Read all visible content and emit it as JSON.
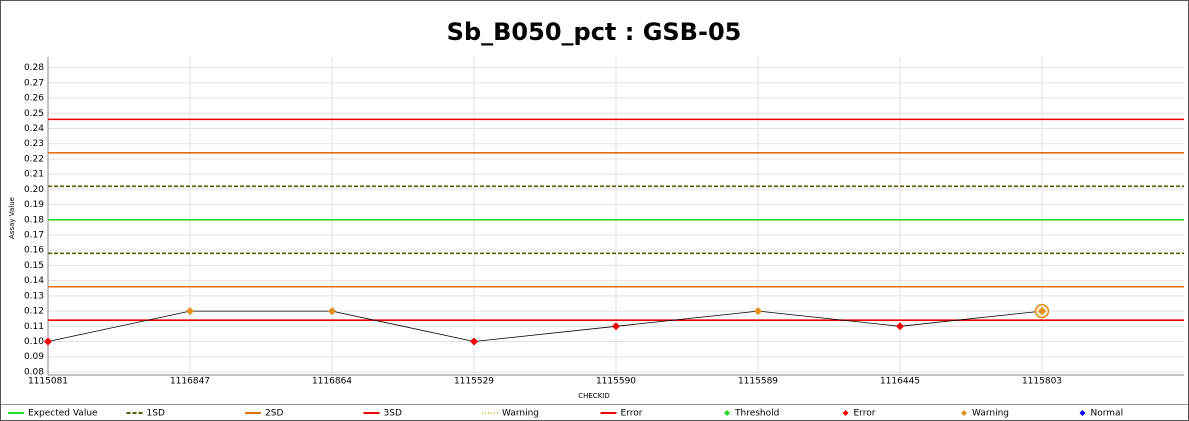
{
  "chart_data": {
    "type": "line",
    "title": "Sb_B050_pct : GSB-05",
    "x_label": "CHECKID",
    "y_label": "Assay Value",
    "categories": [
      "1115081",
      "1116847",
      "1116864",
      "1115529",
      "1115590",
      "1115589",
      "1116445",
      "1115803"
    ],
    "values": [
      0.1,
      0.12,
      0.12,
      0.1,
      0.11,
      0.12,
      0.11,
      0.12
    ],
    "point_colors": [
      "#ee0000",
      "#e09020",
      "#e09020",
      "#ee0000",
      "#ee0000",
      "#e09020",
      "#ee0000",
      "#e09020"
    ],
    "line_color": "#000000",
    "selected_index": 7,
    "ylim": [
      0.078,
      0.287
    ],
    "yticks": [
      0.08,
      0.09,
      {
        "value": 0.1,
        "label": "0.10"
      },
      0.11,
      0.12,
      0.13,
      0.14,
      0.15,
      0.16,
      0.17,
      0.18,
      0.19,
      {
        "value": 0.2,
        "label": "0.20"
      },
      0.21,
      0.22,
      0.23,
      0.24,
      0.25,
      0.26,
      0.27,
      0.28
    ],
    "grid": true,
    "reference_lines": [
      {
        "value": 0.246,
        "color": "#ee0000",
        "dash": "none"
      },
      {
        "value": 0.224,
        "color": "#e07010",
        "dash": "none"
      },
      {
        "value": 0.202,
        "color": "#5a5a00",
        "dash": "4,2"
      },
      {
        "value": 0.18,
        "color": "#22dd22",
        "dash": "none"
      },
      {
        "value": 0.158,
        "color": "#5a5a00",
        "dash": "4,2"
      },
      {
        "value": 0.136,
        "color": "#e07010",
        "dash": "none"
      },
      {
        "value": 0.114,
        "color": "#ee0000",
        "dash": "none"
      }
    ],
    "legend": [
      {
        "name": "Expected Value",
        "color": "#22dd22",
        "marker": "line",
        "dash": "none"
      },
      {
        "name": "1SD",
        "color": "#5a5a00",
        "marker": "line",
        "dash": "4,2"
      },
      {
        "name": "2SD",
        "color": "#e07010",
        "marker": "line",
        "dash": "none"
      },
      {
        "name": "3SD",
        "color": "#ee0000",
        "marker": "line",
        "dash": "none"
      },
      {
        "name": "Warning",
        "color": "#e0c060",
        "marker": "line",
        "dash": "1,2"
      },
      {
        "name": "Error",
        "color": "#ee0000",
        "marker": "line",
        "dash": "none"
      },
      {
        "name": "Threshold",
        "color": "#22dd22",
        "marker": "diamond",
        "dash": "none"
      },
      {
        "name": "Error",
        "color": "#ee0000",
        "marker": "diamond",
        "dash": "none"
      },
      {
        "name": "Warning",
        "color": "#e09020",
        "marker": "diamond",
        "dash": "none"
      },
      {
        "name": "Normal",
        "color": "#0000ee",
        "marker": "diamond",
        "dash": "none"
      }
    ]
  }
}
